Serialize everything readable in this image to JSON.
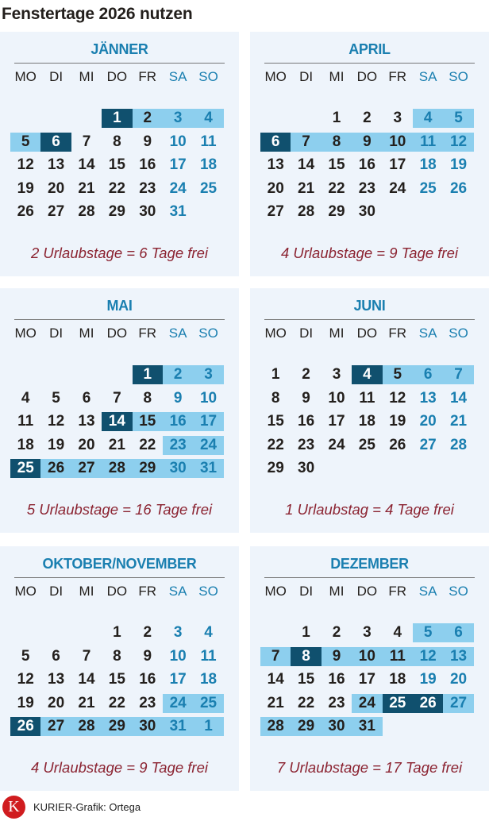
{
  "title": "Fenstertage 2026 nutzen",
  "weekdays": [
    "MO",
    "DI",
    "MI",
    "DO",
    "FR",
    "SA",
    "SO"
  ],
  "colors": {
    "dark_highlight": "#10506e",
    "light_highlight": "#8dcfee",
    "accent": "#1a7fb0",
    "summary": "#8b2331",
    "panel_bg": "#eef4fb"
  },
  "legend_note": "cell states: d = dark highlight, l = light highlight",
  "months": [
    {
      "name": "JÄNNER",
      "summary": "2 Urlaubstage = 6 Tage frei",
      "weeks": [
        [
          null,
          null,
          null,
          [
            1,
            "d"
          ],
          [
            2,
            "l"
          ],
          [
            3,
            "l"
          ],
          [
            4,
            "l"
          ]
        ],
        [
          [
            5,
            "l"
          ],
          [
            6,
            "d"
          ],
          [
            7
          ],
          [
            8
          ],
          [
            9
          ],
          [
            10
          ],
          [
            11
          ]
        ],
        [
          [
            12
          ],
          [
            13
          ],
          [
            14
          ],
          [
            15
          ],
          [
            16
          ],
          [
            17
          ],
          [
            18
          ]
        ],
        [
          [
            19
          ],
          [
            20
          ],
          [
            21
          ],
          [
            22
          ],
          [
            23
          ],
          [
            24
          ],
          [
            25
          ]
        ],
        [
          [
            26
          ],
          [
            27
          ],
          [
            28
          ],
          [
            29
          ],
          [
            30
          ],
          [
            31
          ],
          null
        ]
      ]
    },
    {
      "name": "APRIL",
      "summary": "4 Urlaubstage = 9 Tage frei",
      "weeks": [
        [
          null,
          null,
          [
            1
          ],
          [
            2
          ],
          [
            3
          ],
          [
            4,
            "l"
          ],
          [
            5,
            "l"
          ]
        ],
        [
          [
            6,
            "d"
          ],
          [
            7,
            "l"
          ],
          [
            8,
            "l"
          ],
          [
            9,
            "l"
          ],
          [
            10,
            "l"
          ],
          [
            11,
            "l"
          ],
          [
            12,
            "l"
          ]
        ],
        [
          [
            13
          ],
          [
            14
          ],
          [
            15
          ],
          [
            16
          ],
          [
            17
          ],
          [
            18
          ],
          [
            19
          ]
        ],
        [
          [
            20
          ],
          [
            21
          ],
          [
            22
          ],
          [
            23
          ],
          [
            24
          ],
          [
            25
          ],
          [
            26
          ]
        ],
        [
          [
            27
          ],
          [
            28
          ],
          [
            29
          ],
          [
            30
          ],
          null,
          null,
          null
        ]
      ]
    },
    {
      "name": "MAI",
      "summary": "5 Urlaubstage = 16 Tage frei",
      "weeks": [
        [
          null,
          null,
          null,
          null,
          [
            1,
            "d"
          ],
          [
            2,
            "l"
          ],
          [
            3,
            "l"
          ]
        ],
        [
          [
            4
          ],
          [
            5
          ],
          [
            6
          ],
          [
            7
          ],
          [
            8
          ],
          [
            9
          ],
          [
            10
          ]
        ],
        [
          [
            11
          ],
          [
            12
          ],
          [
            13
          ],
          [
            14,
            "d"
          ],
          [
            15,
            "l"
          ],
          [
            16,
            "l"
          ],
          [
            17,
            "l"
          ]
        ],
        [
          [
            18
          ],
          [
            19
          ],
          [
            20
          ],
          [
            21
          ],
          [
            22
          ],
          [
            23,
            "l"
          ],
          [
            24,
            "l"
          ]
        ],
        [
          [
            25,
            "d"
          ],
          [
            26,
            "l"
          ],
          [
            27,
            "l"
          ],
          [
            28,
            "l"
          ],
          [
            29,
            "l"
          ],
          [
            30,
            "l"
          ],
          [
            31,
            "l"
          ]
        ]
      ]
    },
    {
      "name": "JUNI",
      "summary": "1 Urlaubstag = 4 Tage frei",
      "weeks": [
        [
          [
            1
          ],
          [
            2
          ],
          [
            3
          ],
          [
            4,
            "d"
          ],
          [
            5,
            "l"
          ],
          [
            6,
            "l"
          ],
          [
            7,
            "l"
          ]
        ],
        [
          [
            8
          ],
          [
            9
          ],
          [
            10
          ],
          [
            11
          ],
          [
            12
          ],
          [
            13
          ],
          [
            14
          ]
        ],
        [
          [
            15
          ],
          [
            16
          ],
          [
            17
          ],
          [
            18
          ],
          [
            19
          ],
          [
            20
          ],
          [
            21
          ]
        ],
        [
          [
            22
          ],
          [
            23
          ],
          [
            24
          ],
          [
            25
          ],
          [
            26
          ],
          [
            27
          ],
          [
            28
          ]
        ],
        [
          [
            29
          ],
          [
            30
          ],
          null,
          null,
          null,
          null,
          null
        ]
      ]
    },
    {
      "name": "OKTOBER/NOVEMBER",
      "summary": "4 Urlaubstage = 9 Tage frei",
      "weeks": [
        [
          null,
          null,
          null,
          [
            1
          ],
          [
            2
          ],
          [
            3
          ],
          [
            4
          ]
        ],
        [
          [
            5
          ],
          [
            6
          ],
          [
            7
          ],
          [
            8
          ],
          [
            9
          ],
          [
            10
          ],
          [
            11
          ]
        ],
        [
          [
            12
          ],
          [
            13
          ],
          [
            14
          ],
          [
            15
          ],
          [
            16
          ],
          [
            17
          ],
          [
            18
          ]
        ],
        [
          [
            19
          ],
          [
            20
          ],
          [
            21
          ],
          [
            22
          ],
          [
            23
          ],
          [
            24,
            "l"
          ],
          [
            25,
            "l"
          ]
        ],
        [
          [
            26,
            "d"
          ],
          [
            27,
            "l"
          ],
          [
            28,
            "l"
          ],
          [
            29,
            "l"
          ],
          [
            30,
            "l"
          ],
          [
            31,
            "l"
          ],
          [
            1,
            "l"
          ]
        ]
      ]
    },
    {
      "name": "DEZEMBER",
      "summary": "7 Urlaubstage = 17 Tage frei",
      "weeks": [
        [
          null,
          [
            1
          ],
          [
            2
          ],
          [
            3
          ],
          [
            4
          ],
          [
            5,
            "l"
          ],
          [
            6,
            "l"
          ]
        ],
        [
          [
            7,
            "l"
          ],
          [
            8,
            "d"
          ],
          [
            9,
            "l"
          ],
          [
            10,
            "l"
          ],
          [
            11,
            "l"
          ],
          [
            12,
            "l"
          ],
          [
            13,
            "l"
          ]
        ],
        [
          [
            14
          ],
          [
            15
          ],
          [
            16
          ],
          [
            17
          ],
          [
            18
          ],
          [
            19
          ],
          [
            20
          ]
        ],
        [
          [
            21
          ],
          [
            22
          ],
          [
            23
          ],
          [
            24,
            "l"
          ],
          [
            25,
            "d"
          ],
          [
            26,
            "d"
          ],
          [
            27,
            "l"
          ]
        ],
        [
          [
            28,
            "l"
          ],
          [
            29,
            "l"
          ],
          [
            30,
            "l"
          ],
          [
            31,
            "l"
          ],
          null,
          null,
          null
        ]
      ]
    }
  ],
  "footer": {
    "logo_letter": "K",
    "credit": "KURIER-Grafik: Ortega"
  }
}
